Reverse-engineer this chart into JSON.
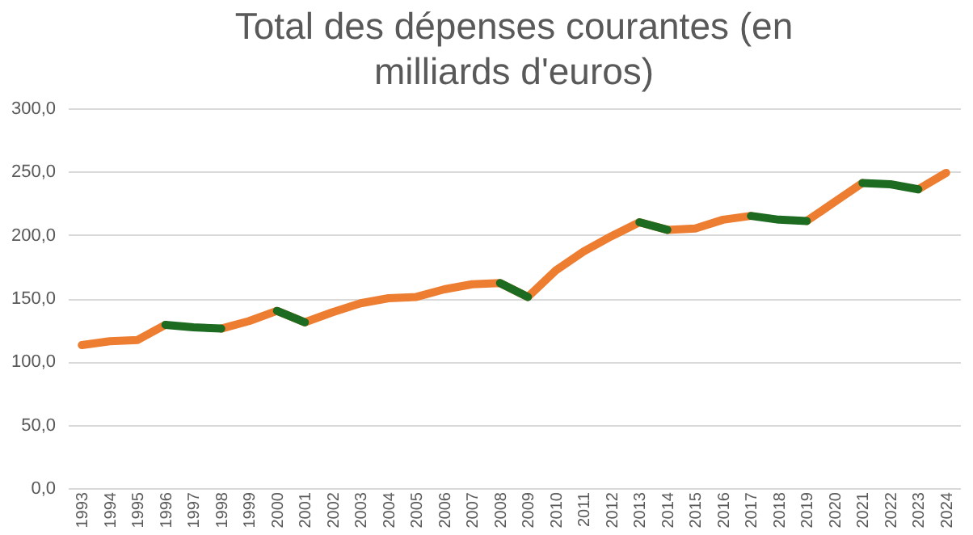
{
  "chart_data": {
    "type": "line",
    "title": "Total des dépenses courantes (en milliards d'euros)",
    "categories": [
      "1993",
      "1994",
      "1995",
      "1996",
      "1997",
      "1998",
      "1999",
      "2000",
      "2001",
      "2002",
      "2003",
      "2004",
      "2005",
      "2006",
      "2007",
      "2008",
      "2009",
      "2010",
      "2011",
      "2012",
      "2013",
      "2014",
      "2015",
      "2016",
      "2017",
      "2018",
      "2019",
      "2020",
      "2021",
      "2022",
      "2023",
      "2024"
    ],
    "series": [
      {
        "color": "#ed7d31",
        "values": [
          113,
          116,
          117,
          129,
          null,
          126,
          132,
          140,
          131,
          139,
          146,
          150,
          151,
          157,
          161,
          162,
          151,
          172,
          187,
          199,
          210,
          204,
          205,
          212,
          215,
          null,
          211,
          226,
          241,
          null,
          236,
          249
        ]
      },
      {
        "color": "#1d6b21",
        "values": [
          null,
          null,
          null,
          129,
          127,
          126,
          null,
          140,
          131,
          null,
          null,
          null,
          null,
          null,
          null,
          162,
          151,
          null,
          null,
          null,
          210,
          204,
          null,
          null,
          215,
          212,
          211,
          null,
          241,
          240,
          236,
          null
        ]
      }
    ],
    "ylim": [
      0,
      300
    ],
    "yticks": [
      {
        "value": 0,
        "label": "0,0"
      },
      {
        "value": 50,
        "label": "50,0"
      },
      {
        "value": 100,
        "label": "100,0"
      },
      {
        "value": 150,
        "label": "150,0"
      },
      {
        "value": 200,
        "label": "200,0"
      },
      {
        "value": 250,
        "label": "250,0"
      },
      {
        "value": 300,
        "label": "300,0"
      }
    ],
    "grid": "y",
    "marker": "none",
    "line_style": "solid"
  }
}
